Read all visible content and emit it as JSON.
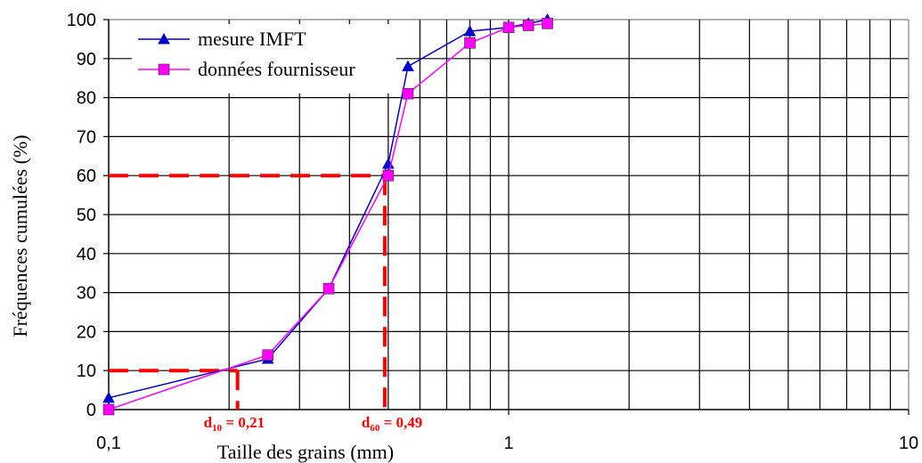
{
  "chart_data": {
    "type": "line",
    "xscale": "log",
    "xlim": [
      0.1,
      10
    ],
    "ylim": [
      0,
      100
    ],
    "xlabel": "Taille des grains (mm)",
    "ylabel": "Fréquences cumulées (%)",
    "x_ticks": [
      "0,1",
      "1",
      "10"
    ],
    "y_ticks": [
      "0",
      "10",
      "20",
      "30",
      "40",
      "50",
      "60",
      "70",
      "80",
      "90",
      "100"
    ],
    "grid": true,
    "legend_position": "top-left",
    "series": [
      {
        "name": "mesure IMFT",
        "color": "#0000cc",
        "marker": "triangle",
        "x": [
          0.1,
          0.25,
          0.355,
          0.5,
          0.56,
          0.8,
          1.0,
          1.12,
          1.25
        ],
        "y": [
          3,
          13,
          31,
          63,
          88,
          97,
          98,
          99,
          100
        ]
      },
      {
        "name": "données fournisseur",
        "color": "#ff00ff",
        "marker": "square",
        "x": [
          0.1,
          0.25,
          0.355,
          0.5,
          0.56,
          0.8,
          1.0,
          1.12,
          1.25
        ],
        "y": [
          0,
          14,
          31,
          60,
          81,
          94,
          98,
          98.5,
          99
        ]
      }
    ],
    "reference_lines": [
      {
        "x": 0.21,
        "y": 10,
        "color": "#ff0000",
        "label_main": "d",
        "label_sub": "10",
        "label_rest": " =  0,21"
      },
      {
        "x": 0.49,
        "y": 60,
        "color": "#ff0000",
        "label_main": "d",
        "label_sub": "60",
        "label_rest": " =  0,49"
      }
    ]
  }
}
